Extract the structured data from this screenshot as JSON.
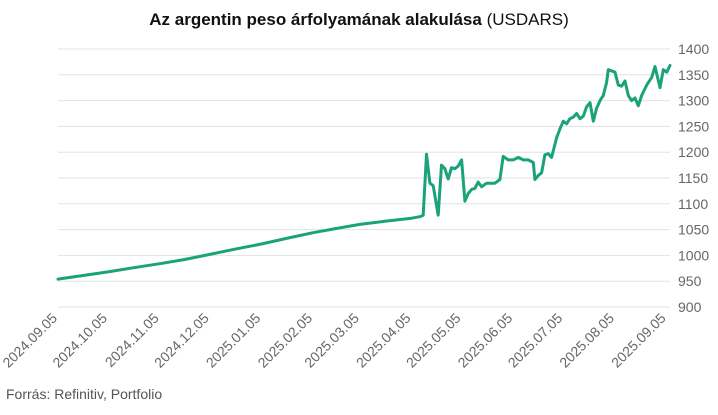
{
  "chart_data": {
    "type": "line",
    "title": "Az argentin peso árfolyamának alakulása",
    "subtitle": "(USDARS)",
    "xlabel": "",
    "ylabel": "",
    "ylim": [
      900,
      1400
    ],
    "y_ticks": [
      900,
      950,
      1000,
      1050,
      1100,
      1150,
      1200,
      1250,
      1300,
      1350,
      1400
    ],
    "x_ticks": [
      "2024.09.05",
      "2024.10.05",
      "2024.11.05",
      "2024.12.05",
      "2025.01.05",
      "2025.02.05",
      "2025.03.05",
      "2025.04.05",
      "2025.05.05",
      "2025.06.05",
      "2025.07.05",
      "2025.08.05",
      "2025.09.05"
    ],
    "y_axis_position": "right",
    "grid": true,
    "legend": "none",
    "series": [
      {
        "color": "#1aa37a",
        "points": [
          [
            "2024-09-05",
            954
          ],
          [
            "2024-09-20",
            961
          ],
          [
            "2024-10-05",
            968
          ],
          [
            "2024-10-20",
            976
          ],
          [
            "2024-11-05",
            984
          ],
          [
            "2024-11-20",
            992
          ],
          [
            "2024-12-05",
            1002
          ],
          [
            "2024-12-20",
            1012
          ],
          [
            "2025-01-05",
            1022
          ],
          [
            "2025-01-20",
            1033
          ],
          [
            "2025-02-05",
            1044
          ],
          [
            "2025-02-20",
            1053
          ],
          [
            "2025-03-05",
            1060
          ],
          [
            "2025-03-20",
            1066
          ],
          [
            "2025-04-05",
            1072
          ],
          [
            "2025-04-10",
            1075
          ],
          [
            "2025-04-12",
            1078
          ],
          [
            "2025-04-14",
            1196
          ],
          [
            "2025-04-16",
            1140
          ],
          [
            "2025-04-18",
            1135
          ],
          [
            "2025-04-21",
            1078
          ],
          [
            "2025-04-23",
            1175
          ],
          [
            "2025-04-25",
            1168
          ],
          [
            "2025-04-27",
            1148
          ],
          [
            "2025-04-29",
            1170
          ],
          [
            "2025-05-01",
            1168
          ],
          [
            "2025-05-03",
            1173
          ],
          [
            "2025-05-05",
            1185
          ],
          [
            "2025-05-07",
            1105
          ],
          [
            "2025-05-09",
            1120
          ],
          [
            "2025-05-11",
            1128
          ],
          [
            "2025-05-13",
            1130
          ],
          [
            "2025-05-15",
            1142
          ],
          [
            "2025-05-17",
            1133
          ],
          [
            "2025-05-20",
            1140
          ],
          [
            "2025-05-25",
            1140
          ],
          [
            "2025-05-28",
            1147
          ],
          [
            "2025-05-30",
            1192
          ],
          [
            "2025-06-02",
            1185
          ],
          [
            "2025-06-05",
            1185
          ],
          [
            "2025-06-08",
            1190
          ],
          [
            "2025-06-11",
            1185
          ],
          [
            "2025-06-14",
            1185
          ],
          [
            "2025-06-17",
            1180
          ],
          [
            "2025-06-18",
            1147
          ],
          [
            "2025-06-20",
            1155
          ],
          [
            "2025-06-22",
            1160
          ],
          [
            "2025-06-24",
            1195
          ],
          [
            "2025-06-26",
            1197
          ],
          [
            "2025-06-28",
            1190
          ],
          [
            "2025-07-01",
            1228
          ],
          [
            "2025-07-03",
            1245
          ],
          [
            "2025-07-05",
            1260
          ],
          [
            "2025-07-07",
            1255
          ],
          [
            "2025-07-09",
            1265
          ],
          [
            "2025-07-11",
            1268
          ],
          [
            "2025-07-13",
            1275
          ],
          [
            "2025-07-15",
            1265
          ],
          [
            "2025-07-17",
            1270
          ],
          [
            "2025-07-19",
            1288
          ],
          [
            "2025-07-21",
            1296
          ],
          [
            "2025-07-23",
            1260
          ],
          [
            "2025-07-25",
            1285
          ],
          [
            "2025-07-27",
            1300
          ],
          [
            "2025-07-29",
            1310
          ],
          [
            "2025-07-31",
            1335
          ],
          [
            "2025-08-01",
            1360
          ],
          [
            "2025-08-05",
            1355
          ],
          [
            "2025-08-07",
            1330
          ],
          [
            "2025-08-09",
            1328
          ],
          [
            "2025-08-11",
            1338
          ],
          [
            "2025-08-13",
            1310
          ],
          [
            "2025-08-15",
            1300
          ],
          [
            "2025-08-17",
            1305
          ],
          [
            "2025-08-19",
            1290
          ],
          [
            "2025-08-21",
            1310
          ],
          [
            "2025-08-24",
            1330
          ],
          [
            "2025-08-27",
            1345
          ],
          [
            "2025-08-29",
            1366
          ],
          [
            "2025-09-01",
            1325
          ],
          [
            "2025-09-03",
            1360
          ],
          [
            "2025-09-05",
            1355
          ],
          [
            "2025-09-07",
            1368
          ]
        ]
      }
    ]
  },
  "source": "Forrás: Refinitiv, Portfolio"
}
